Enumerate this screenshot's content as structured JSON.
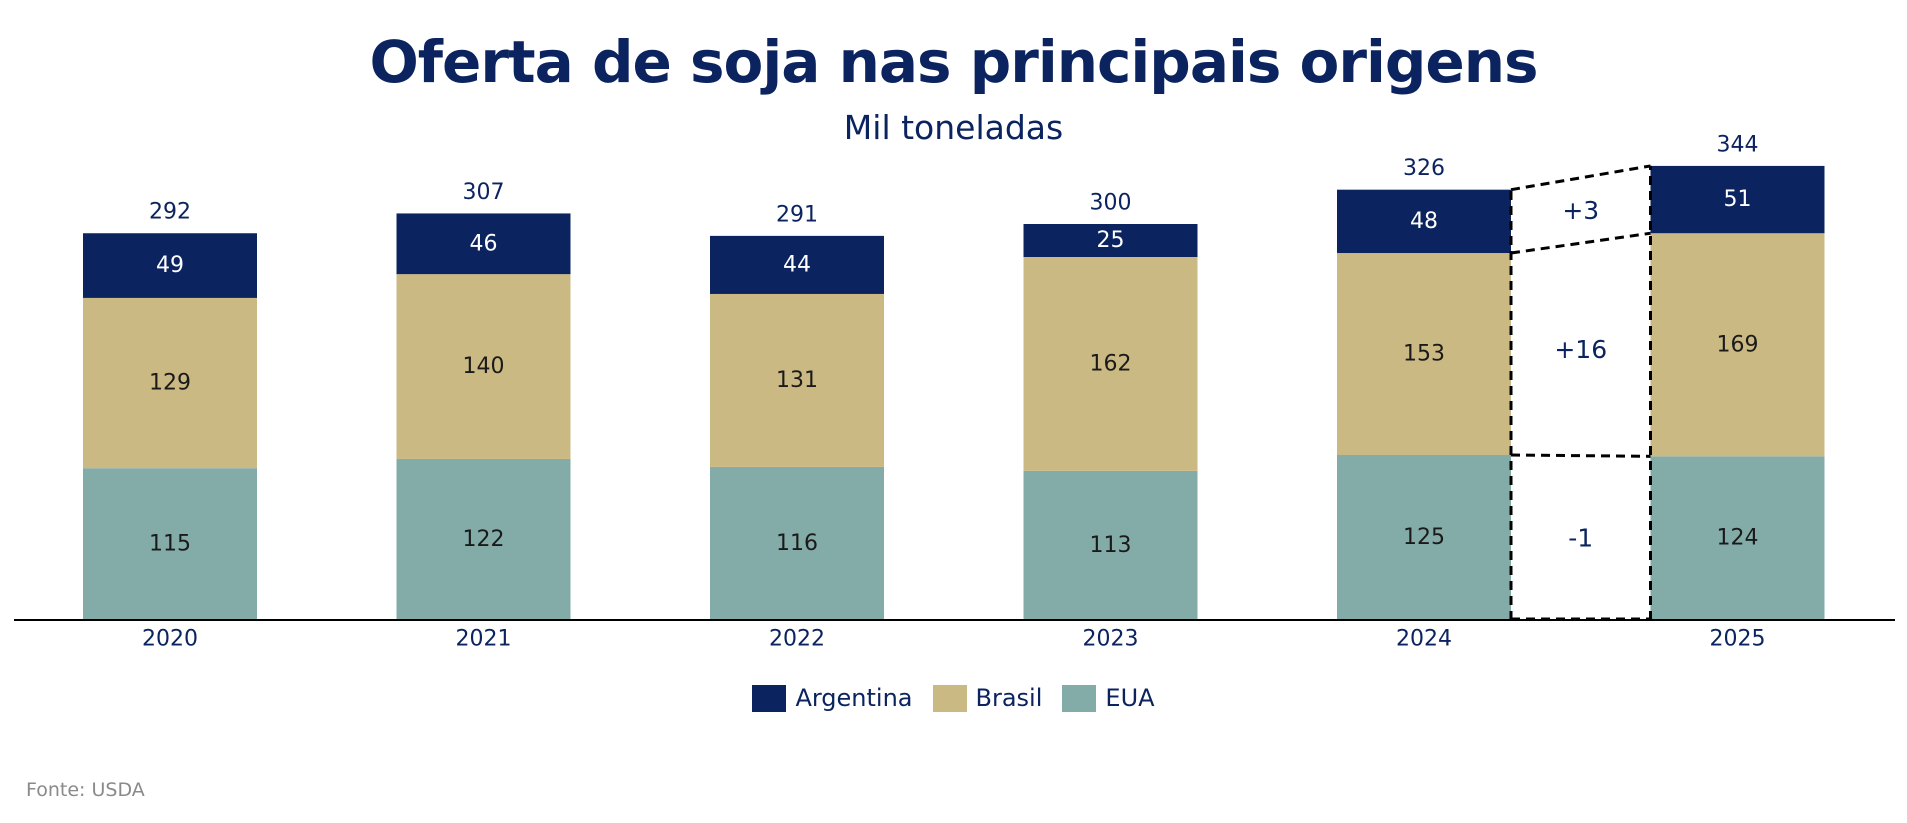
{
  "chart_data": {
    "type": "bar",
    "stacked": true,
    "title": "Oferta de soja nas principais origens",
    "subtitle": "Mil toneladas",
    "categories": [
      "2020",
      "2021",
      "2022",
      "2023",
      "2024",
      "2025"
    ],
    "series": [
      {
        "name": "EUA",
        "color": "#83aca9",
        "values": [
          115,
          122,
          116,
          113,
          125,
          124
        ]
      },
      {
        "name": "Brasil",
        "color": "#cbb983",
        "values": [
          129,
          140,
          131,
          162,
          153,
          169
        ]
      },
      {
        "name": "Argentina",
        "color": "#0b2460",
        "values": [
          49,
          46,
          44,
          25,
          48,
          51
        ]
      }
    ],
    "totals": [
      292,
      307,
      291,
      300,
      326,
      344
    ],
    "ylim": [
      0,
      370
    ],
    "legend_order": [
      "Argentina",
      "Brasil",
      "EUA"
    ],
    "legend_position": "bottom",
    "grid": false,
    "bridge": {
      "from": "2024",
      "to": "2025",
      "changes": [
        {
          "series": "EUA",
          "label": "-1"
        },
        {
          "series": "Brasil",
          "label": "+16"
        },
        {
          "series": "Argentina",
          "label": "+3"
        }
      ]
    },
    "source": "Fonte: USDA"
  }
}
